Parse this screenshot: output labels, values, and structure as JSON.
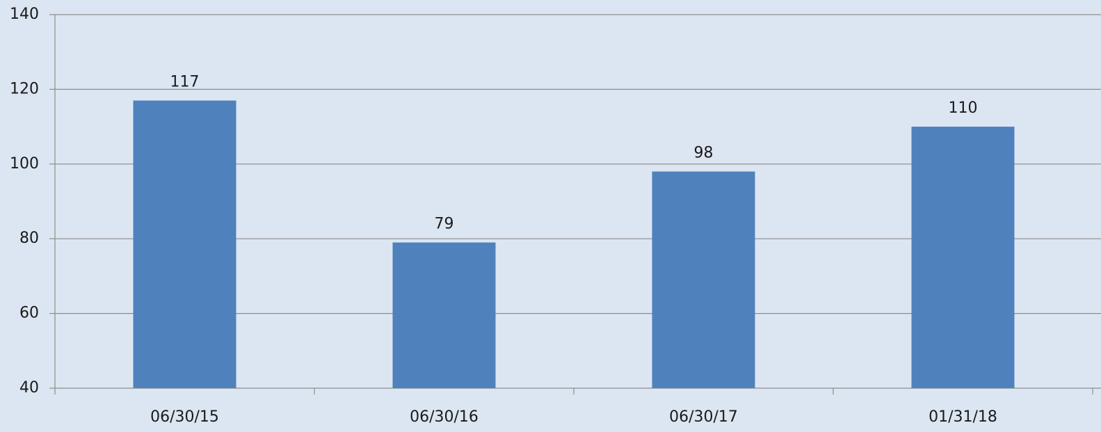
{
  "chart_data": {
    "type": "bar",
    "categories": [
      "06/30/15",
      "06/30/16",
      "06/30/17",
      "01/31/18"
    ],
    "values": [
      117,
      79,
      98,
      110
    ],
    "color": "#4f81bd",
    "ylim": [
      40,
      140
    ],
    "yticks": [
      40,
      60,
      80,
      100,
      120,
      140
    ],
    "grid": true
  }
}
